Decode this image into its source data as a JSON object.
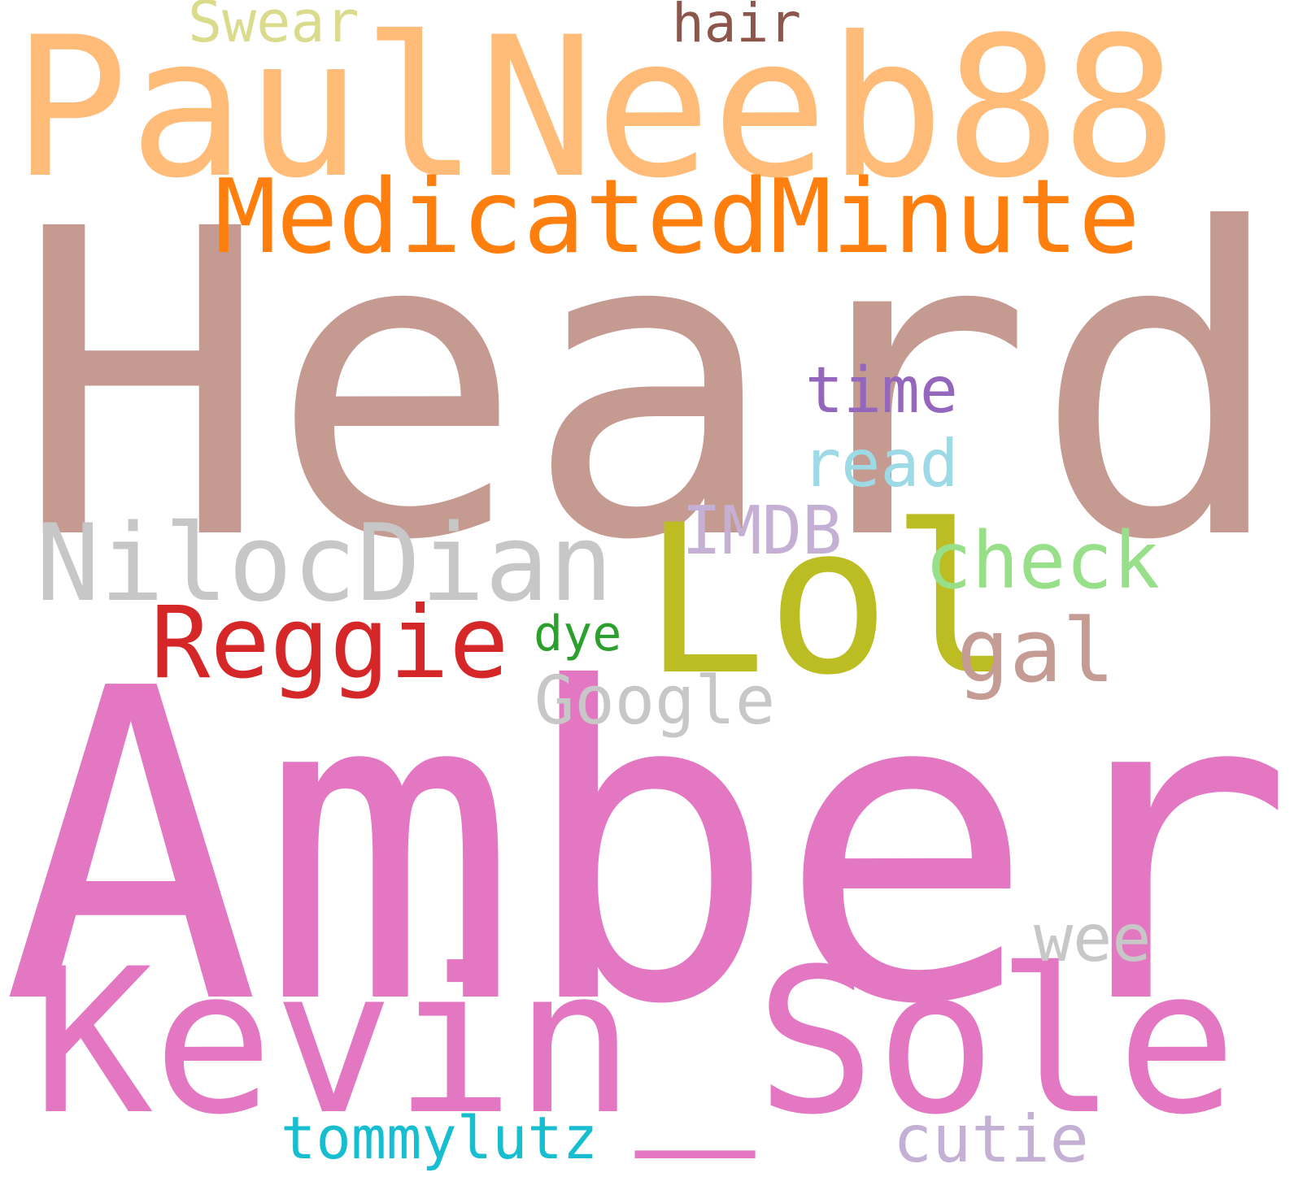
{
  "cloud": {
    "background": "#ffffff",
    "words": [
      {
        "text": "Heard",
        "color": "#c49a91"
      },
      {
        "text": "Amber",
        "color": "#e377c2"
      },
      {
        "text": "PaulNeeb88",
        "color": "#ffbb78"
      },
      {
        "text": "Kevin_Sole",
        "color": "#e377c2"
      },
      {
        "text": "Lol",
        "color": "#bcbd22"
      },
      {
        "text": "MedicatedMinute",
        "color": "#ff7f0e"
      },
      {
        "text": "NilocDian",
        "color": "#c7c7c7"
      },
      {
        "text": "Reggie",
        "color": "#d62728"
      },
      {
        "text": "check",
        "color": "#98df8a"
      },
      {
        "text": "gal",
        "color": "#c49c94"
      },
      {
        "text": "Google",
        "color": "#c7c7c7"
      },
      {
        "text": "IMDB",
        "color": "#c5b0d5"
      },
      {
        "text": "time",
        "color": "#9467bd"
      },
      {
        "text": "read",
        "color": "#9edae5"
      },
      {
        "text": "dye",
        "color": "#2ca02c"
      },
      {
        "text": "wee",
        "color": "#c7c7c7"
      },
      {
        "text": "Swear",
        "color": "#dbdb8d"
      },
      {
        "text": "hair",
        "color": "#8c564b"
      },
      {
        "text": "tommylutz",
        "color": "#17becf"
      },
      {
        "text": "cutie",
        "color": "#c5b0d5"
      }
    ]
  }
}
